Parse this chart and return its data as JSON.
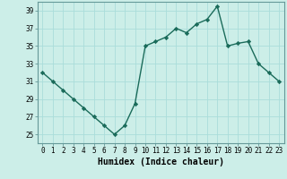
{
  "title": "",
  "xlabel": "Humidex (Indice chaleur)",
  "x": [
    0,
    1,
    2,
    3,
    4,
    5,
    6,
    7,
    8,
    9,
    10,
    11,
    12,
    13,
    14,
    15,
    16,
    17,
    18,
    19,
    20,
    21,
    22,
    23
  ],
  "y": [
    32,
    31,
    30,
    29,
    28,
    27,
    26,
    25,
    26,
    28.5,
    35,
    35.5,
    36,
    37,
    36.5,
    37.5,
    38,
    39.5,
    35,
    35.3,
    35.5,
    33,
    32,
    31
  ],
  "line_color": "#1a6b5a",
  "marker": "D",
  "marker_size": 2.2,
  "bg_color": "#cceee8",
  "grid_color": "#aaddda",
  "axis_bg_color": "#cceee8",
  "ylim": [
    24,
    40
  ],
  "yticks": [
    25,
    27,
    29,
    31,
    33,
    35,
    37,
    39
  ],
  "xlim": [
    -0.5,
    23.5
  ],
  "xticks": [
    0,
    1,
    2,
    3,
    4,
    5,
    6,
    7,
    8,
    9,
    10,
    11,
    12,
    13,
    14,
    15,
    16,
    17,
    18,
    19,
    20,
    21,
    22,
    23
  ],
  "tick_fontsize": 5.5,
  "xlabel_fontsize": 7,
  "line_width": 1.0,
  "spine_color": "#669999"
}
